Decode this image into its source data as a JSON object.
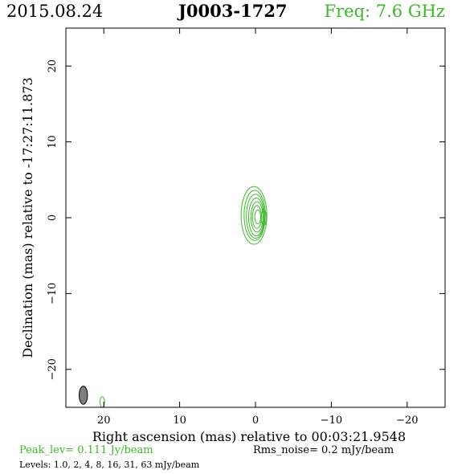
{
  "header": {
    "date": "2015.08.24",
    "source": "J0003-1727",
    "frequency": "Freq: 7.6 GHz"
  },
  "footer": {
    "peak": "Peak_lev=  0.111 Jy/beam",
    "rms": "Rms_noise=  0.2 mJy/beam",
    "levels": "Levels: 1.0,   2,   4,   8,  16,  31,  63 mJy/beam"
  },
  "colors": {
    "contour": "#3cb829",
    "beam": "#7f7f7f",
    "frame": "#000000"
  },
  "chart_data": {
    "type": "contour",
    "xlabel": "Right ascension (mas) relative to 00:03:21.9548",
    "ylabel": "Declination (mas) relative to -17:27:11.873",
    "xlim": [
      25,
      -25
    ],
    "ylim": [
      -25,
      25
    ],
    "x_ticks": [
      20,
      10,
      0,
      -10,
      -20
    ],
    "x_tick_labels": [
      "20",
      "10",
      "0",
      "−10",
      "−20"
    ],
    "y_ticks": [
      -20,
      -10,
      0,
      10,
      20
    ],
    "y_tick_labels": [
      "−20",
      "−10",
      "0",
      "10",
      "20"
    ],
    "levels_mJy": [
      1.0,
      2,
      4,
      8,
      16,
      31,
      63
    ],
    "contours": [
      {
        "level": 1.0,
        "cx": 0.2,
        "cy": 0.3,
        "rx": 1.7,
        "ry": 3.8
      },
      {
        "level": 2,
        "cx": 0.1,
        "cy": 0.3,
        "rx": 1.4,
        "ry": 3.3
      },
      {
        "level": 4,
        "cx": 0.0,
        "cy": 0.2,
        "rx": 1.2,
        "ry": 2.9
      },
      {
        "level": 8,
        "cx": -0.1,
        "cy": 0.1,
        "rx": 1.0,
        "ry": 2.5
      },
      {
        "level": 16,
        "cx": -0.2,
        "cy": 0.1,
        "rx": 0.8,
        "ry": 2.0
      },
      {
        "level": 31,
        "cx": -0.2,
        "cy": 0.1,
        "rx": 0.6,
        "ry": 1.5
      },
      {
        "level": 63,
        "cx": -0.3,
        "cy": 0.1,
        "rx": 0.4,
        "ry": 0.9
      }
    ],
    "outer_contour_extra": {
      "cx": -1.1,
      "cy": 0.0,
      "rx": 0.35,
      "ry": 1.0
    },
    "beam": {
      "cx": 22.7,
      "cy": -23.4,
      "rx": 0.55,
      "ry": 1.2
    },
    "beam_contour": {
      "cx": 20.2,
      "cy": -24.3,
      "rx": 0.3,
      "ry": 0.7
    }
  }
}
